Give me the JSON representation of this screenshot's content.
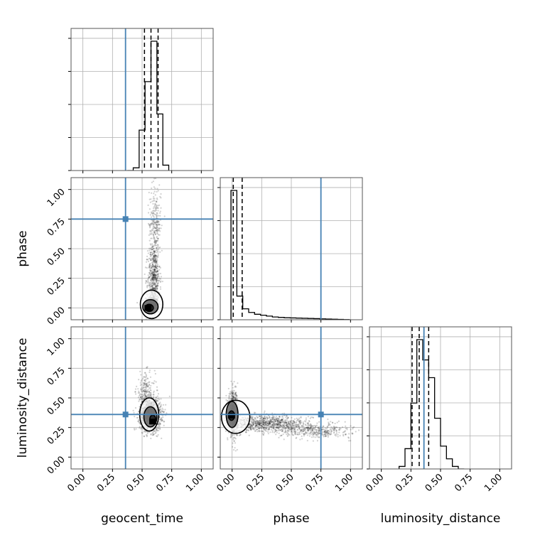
{
  "chart_data": {
    "type": "corner",
    "parameters": [
      "geocent_time",
      "phase",
      "luminosity_distance"
    ],
    "injection": {
      "geocent_time": 0.36,
      "phase": 0.75,
      "luminosity_distance": 0.36
    },
    "tick_labels": [
      "0.00",
      "0.25",
      "0.50",
      "0.75",
      "1.00"
    ],
    "xlim": [
      -0.1,
      1.1
    ],
    "grid": true,
    "colors": {
      "truth": "#4682b4",
      "hist": "#000000",
      "points": "#000000",
      "background": "#ffffff",
      "grid": "#b0b0b0"
    },
    "histograms": [
      {
        "parameter": "geocent_time",
        "bin_edges": [
          0.375,
          0.425,
          0.475,
          0.525,
          0.575,
          0.625,
          0.675,
          0.725
        ],
        "counts": [
          0,
          2,
          30,
          66,
          96,
          42,
          4
        ],
        "quantiles": [
          0.52,
          0.575,
          0.635
        ]
      },
      {
        "parameter": "phase",
        "bin_edges": [
          -0.01,
          0.04,
          0.09,
          0.14,
          0.19,
          0.24,
          0.29,
          0.34,
          0.39,
          0.44,
          0.49,
          0.54,
          0.59,
          0.64,
          0.69,
          0.74,
          0.79,
          0.84,
          0.89,
          0.94,
          0.99
        ],
        "counts": [
          71,
          13,
          6,
          4,
          3,
          2.5,
          2,
          1.5,
          1.3,
          1.1,
          1,
          0.9,
          0.8,
          0.7,
          0.6,
          0.5,
          0.4,
          0.3,
          0.2,
          0.1
        ],
        "quantiles": [
          0.01,
          0.085
        ]
      },
      {
        "parameter": "luminosity_distance",
        "bin_edges": [
          0.15,
          0.2,
          0.25,
          0.3,
          0.35,
          0.4,
          0.45,
          0.5,
          0.55,
          0.6,
          0.65,
          0.7
        ],
        "counts": [
          1,
          8,
          26,
          51,
          43,
          36,
          20,
          9,
          4,
          1,
          0
        ],
        "quantiles": [
          0.26,
          0.32,
          0.4
        ]
      }
    ],
    "scatter": [
      {
        "x": "geocent_time",
        "y": "phase",
        "clusters": [
          {
            "mean": [
              0.58,
              0.03
            ],
            "sd": [
              0.03,
              0.03
            ],
            "n": 600
          },
          {
            "mean": [
              0.6,
              0.25
            ],
            "sd": [
              0.025,
              0.14
            ],
            "n": 550
          },
          {
            "mean": [
              0.61,
              0.7
            ],
            "sd": [
              0.025,
              0.17
            ],
            "n": 280
          }
        ],
        "contours": [
          {
            "center": [
              0.56,
              0.0
            ],
            "r": [
              0.035,
              0.03
            ]
          },
          {
            "center": [
              0.57,
              0.01
            ],
            "r": [
              0.065,
              0.06
            ]
          },
          {
            "center": [
              0.58,
              0.03
            ],
            "r": [
              0.095,
              0.12
            ]
          }
        ],
        "peak": [
          0.55,
          0.0
        ]
      },
      {
        "x": "geocent_time",
        "y": "luminosity_distance",
        "clusters": [
          {
            "mean": [
              0.57,
              0.36
            ],
            "sd": [
              0.045,
              0.07
            ],
            "n": 1200
          },
          {
            "mean": [
              0.53,
              0.55
            ],
            "sd": [
              0.04,
              0.08
            ],
            "n": 200
          }
        ],
        "contours": [
          {
            "center": [
              0.59,
              0.32
            ],
            "r": [
              0.025,
              0.035
            ]
          },
          {
            "center": [
              0.57,
              0.34
            ],
            "r": [
              0.055,
              0.085
            ]
          },
          {
            "center": [
              0.56,
              0.36
            ],
            "r": [
              0.08,
              0.14
            ]
          }
        ],
        "peak": [
          0.59,
          0.3
        ]
      },
      {
        "x": "phase",
        "y": "luminosity_distance",
        "clusters": [
          {
            "mean": [
              0.01,
              0.37
            ],
            "sd": [
              0.02,
              0.09
            ],
            "n": 700
          },
          {
            "mean": [
              0.3,
              0.28
            ],
            "sd": [
              0.18,
              0.035
            ],
            "n": 900
          },
          {
            "mean": [
              0.7,
              0.22
            ],
            "sd": [
              0.15,
              0.03
            ],
            "n": 350
          }
        ],
        "contours": [
          {
            "center": [
              -0.005,
              0.35
            ],
            "r": [
              0.025,
              0.04
            ]
          },
          {
            "center": [
              0.0,
              0.36
            ],
            "r": [
              0.05,
              0.11
            ]
          },
          {
            "center": [
              0.03,
              0.34
            ],
            "r": [
              0.12,
              0.14
            ]
          }
        ],
        "peak": [
          -0.005,
          0.35
        ]
      }
    ]
  }
}
